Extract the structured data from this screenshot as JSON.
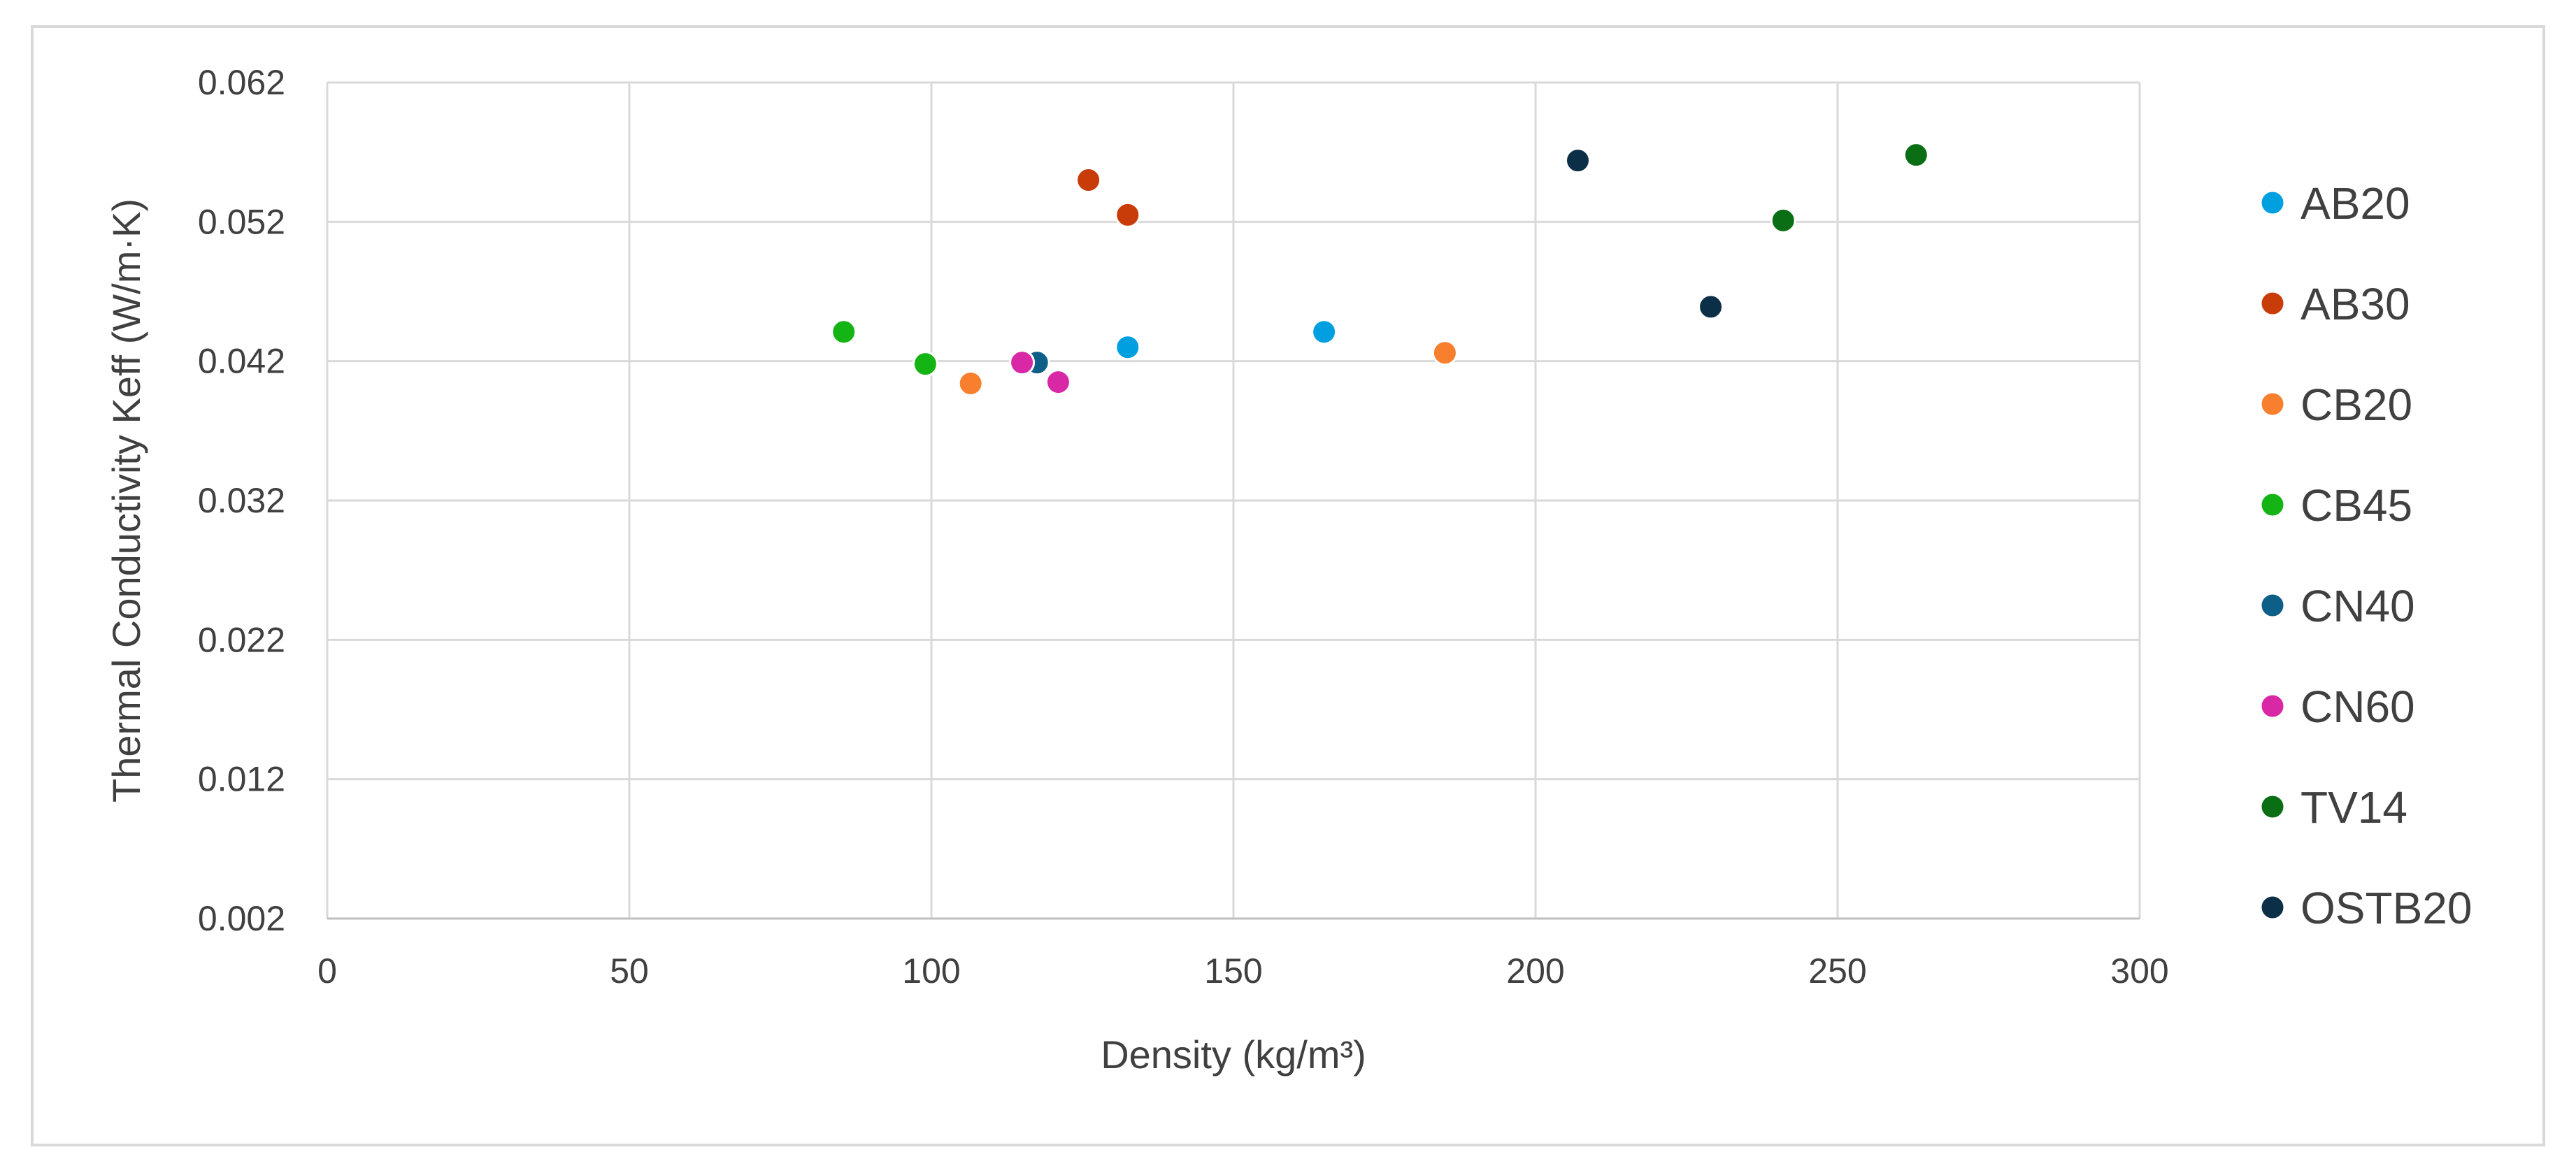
{
  "chart_data": {
    "type": "scatter",
    "title": "",
    "xlabel": "Density (kg/m³)",
    "ylabel": "Thermal Conductivity Keff (W/m·K)",
    "xlim": [
      0,
      300
    ],
    "ylim": [
      0.002,
      0.062
    ],
    "x_ticks": [
      0,
      50,
      100,
      150,
      200,
      250,
      300
    ],
    "x_tick_labels": [
      "0",
      "50",
      "100",
      "150",
      "200",
      "250",
      "300"
    ],
    "y_ticks": [
      0.002,
      0.012,
      0.022,
      0.032,
      0.042,
      0.052,
      0.062
    ],
    "y_tick_labels": [
      "0.002",
      "0.012",
      "0.022",
      "0.032",
      "0.042",
      "0.052",
      "0.062"
    ],
    "grid": true,
    "legend_position": "right",
    "series": [
      {
        "name": "AB20",
        "color": "#00a0e0",
        "points": [
          [
            132.5,
            0.043
          ],
          [
            165.0,
            0.0441
          ]
        ]
      },
      {
        "name": "AB30",
        "color": "#c83c0a",
        "points": [
          [
            126.0,
            0.055
          ],
          [
            132.5,
            0.0525
          ]
        ]
      },
      {
        "name": "CB20",
        "color": "#f77f2e",
        "points": [
          [
            106.5,
            0.0404
          ],
          [
            185.0,
            0.0426
          ]
        ]
      },
      {
        "name": "CB45",
        "color": "#14b414",
        "points": [
          [
            85.5,
            0.0441
          ],
          [
            99.0,
            0.0418
          ]
        ]
      },
      {
        "name": "CN40",
        "color": "#0e5f87",
        "points": [
          [
            117.5,
            0.0419
          ]
        ]
      },
      {
        "name": "CN60",
        "color": "#d928a5",
        "points": [
          [
            115.0,
            0.0419
          ],
          [
            121.0,
            0.0405
          ]
        ]
      },
      {
        "name": "TV14",
        "color": "#0a6e14",
        "points": [
          [
            241.0,
            0.0521
          ],
          [
            263.0,
            0.0568
          ]
        ]
      },
      {
        "name": "OSTB20",
        "color": "#0c2f48",
        "points": [
          [
            207.0,
            0.0564
          ],
          [
            229.0,
            0.0459
          ]
        ]
      }
    ]
  }
}
